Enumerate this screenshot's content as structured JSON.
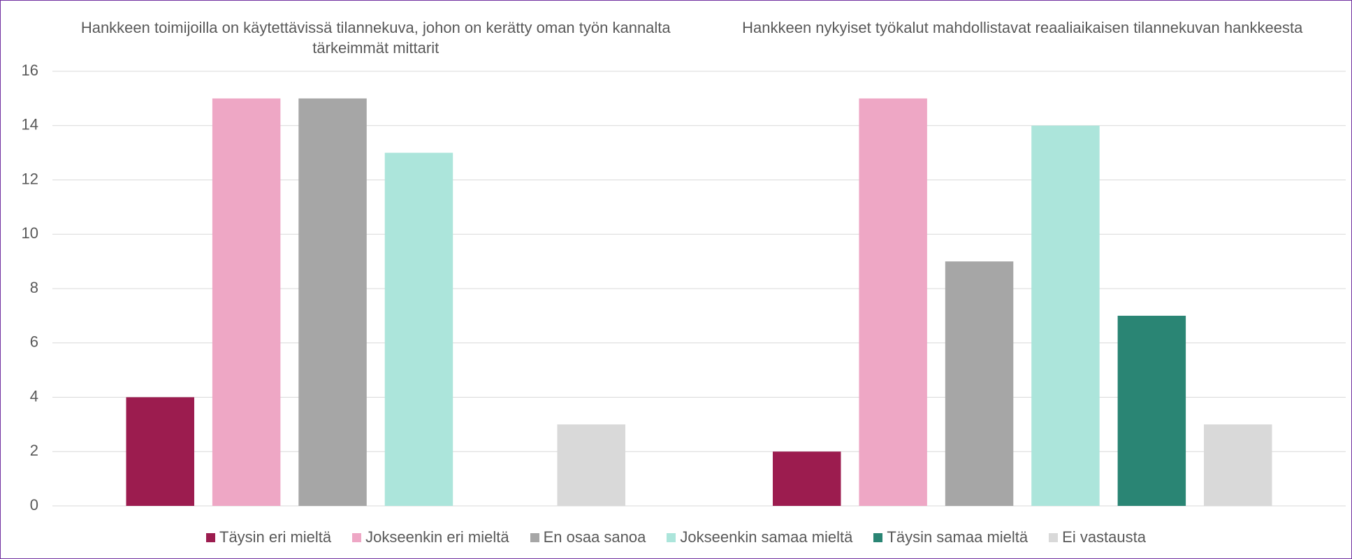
{
  "chart_data": {
    "type": "bar",
    "categories": [
      "Hankkeen toimijoilla on käytettävissä tilannekuva, johon on kerätty oman työn kannalta tärkeimmät mittarit",
      "Hankkeen nykyiset työkalut mahdollistavat reaaliaikaisen tilannekuvan hankkeesta"
    ],
    "series": [
      {
        "name": "Täysin eri mieltä",
        "color": "#9c1c4f",
        "values": [
          4,
          2
        ]
      },
      {
        "name": "Jokseenkin eri mieltä",
        "color": "#eea7c5",
        "values": [
          15,
          15
        ]
      },
      {
        "name": "En osaa sanoa",
        "color": "#a6a6a6",
        "values": [
          15,
          9
        ]
      },
      {
        "name": "Jokseenkin samaa mieltä",
        "color": "#ace5db",
        "values": [
          13,
          14
        ]
      },
      {
        "name": "Täysin samaa mieltä",
        "color": "#2a8574",
        "values": [
          0,
          7
        ]
      },
      {
        "name": "Ei vastausta",
        "color": "#d9d9d9",
        "values": [
          3,
          3
        ]
      }
    ],
    "ylim": [
      0,
      16
    ],
    "yticks": [
      0,
      2,
      4,
      6,
      8,
      10,
      12,
      14,
      16
    ],
    "grid": true,
    "legend": "bottom"
  }
}
